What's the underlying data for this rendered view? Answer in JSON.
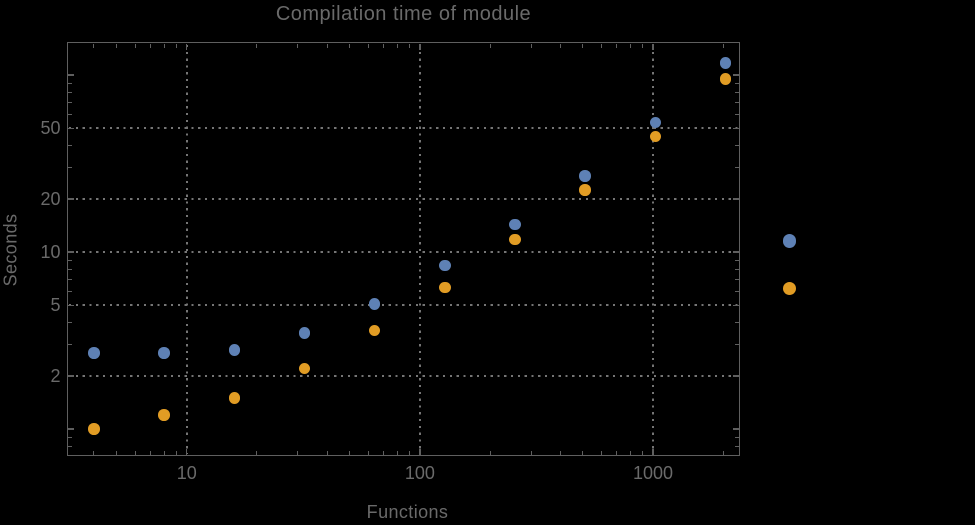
{
  "chart_data": {
    "type": "scatter",
    "title": "Compilation time of module",
    "xlabel": "Functions",
    "ylabel": "Seconds",
    "x_scale": "log",
    "y_scale": "log",
    "xlim": [
      3.08,
      2350
    ],
    "ylim": [
      0.71,
      152
    ],
    "grid": "dotted",
    "x_ticks": [
      {
        "value": 10,
        "label": "10"
      },
      {
        "value": 100,
        "label": "100"
      },
      {
        "value": 1000,
        "label": "1000"
      }
    ],
    "y_ticks": [
      {
        "value": 2,
        "label": "2"
      },
      {
        "value": 5,
        "label": "5"
      },
      {
        "value": 10,
        "label": "10"
      },
      {
        "value": 20,
        "label": "20"
      },
      {
        "value": 50,
        "label": "50"
      }
    ],
    "y_unlabeled_major_ticks": [
      1,
      100
    ],
    "x_gridlines": [
      10,
      100,
      1000
    ],
    "y_gridlines": [
      2,
      5,
      10,
      20,
      50
    ],
    "series": [
      {
        "name": "blue-series",
        "color": "#5e81b5",
        "points": [
          [
            4,
            2.7
          ],
          [
            8,
            2.7
          ],
          [
            16,
            2.8
          ],
          [
            32,
            3.5
          ],
          [
            64,
            5.1
          ],
          [
            128,
            8.4
          ],
          [
            256,
            14.3
          ],
          [
            512,
            27
          ],
          [
            1024,
            54
          ],
          [
            2048,
            117
          ]
        ]
      },
      {
        "name": "orange-series",
        "color": "#e19c24",
        "points": [
          [
            4,
            1.0
          ],
          [
            8,
            1.2
          ],
          [
            16,
            1.5
          ],
          [
            32,
            2.2
          ],
          [
            64,
            3.6
          ],
          [
            128,
            6.3
          ],
          [
            256,
            11.8
          ],
          [
            512,
            22.4
          ],
          [
            1024,
            45
          ],
          [
            2048,
            95
          ]
        ]
      }
    ],
    "legend": {
      "position": "right-outside",
      "labels_visible": false,
      "markers": [
        {
          "name": "blue",
          "color": "#5e81b5"
        },
        {
          "name": "orange",
          "color": "#e19c24"
        }
      ]
    },
    "colors": {
      "background": "#000000",
      "frame": "#5f5f5f",
      "grid": "#757575",
      "text": "#6a6a6a"
    }
  }
}
